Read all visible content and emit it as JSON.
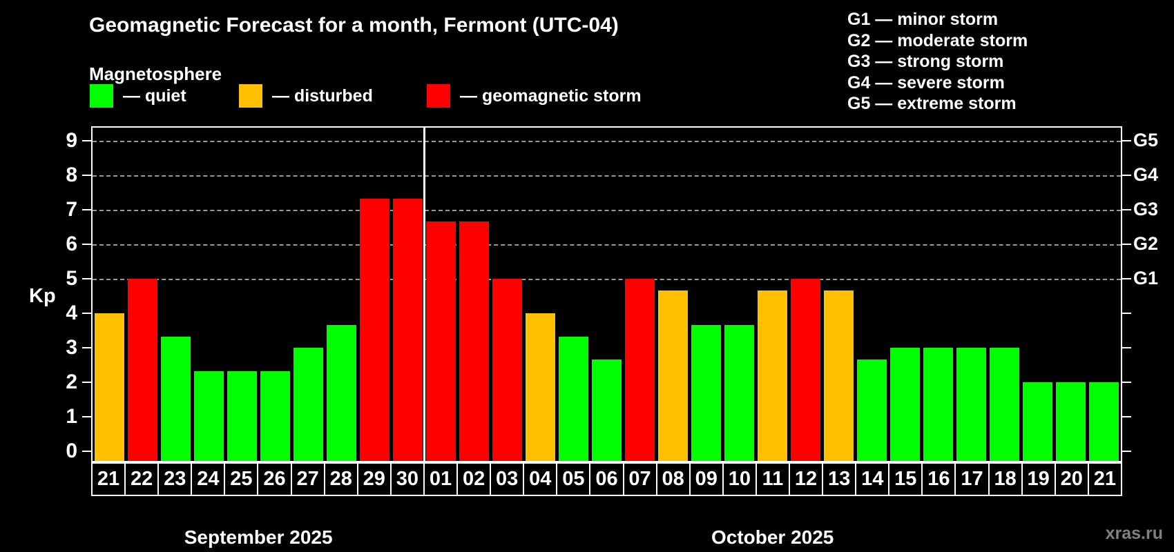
{
  "header": {
    "title": "Geomagnetic Forecast for a month, Fermont (UTC-04)"
  },
  "magnetosphere": {
    "label": "Magnetosphere",
    "legend": [
      {
        "key": "quiet",
        "label": "— quiet",
        "color": "#00ff00"
      },
      {
        "key": "disturbed",
        "label": "— disturbed",
        "color": "#ffc000"
      },
      {
        "key": "storm",
        "label": "— geomagnetic storm",
        "color": "#ff0000"
      }
    ]
  },
  "storm_scale_legend": {
    "lines": [
      "G1 — minor storm",
      "G2 — moderate storm",
      "G3 — strong storm",
      "G4 — severe storm",
      "G5 — extreme storm"
    ]
  },
  "watermark": "xras.ru",
  "colors": {
    "background": "#000000",
    "axis": "#ffffff",
    "grid": "#9a9a9a",
    "text": "#ffffff",
    "watermark": "#808080",
    "quiet": "#00ff00",
    "disturbed": "#ffc000",
    "storm": "#ff0000"
  },
  "chart_data": {
    "type": "bar",
    "ylabel": "Kp",
    "ylim": [
      0,
      9
    ],
    "yticks": [
      0,
      1,
      2,
      3,
      4,
      5,
      6,
      7,
      8,
      9
    ],
    "gridline_levels": [
      5,
      6,
      7,
      8,
      9
    ],
    "grid_style": "dashed",
    "legend_position": "top",
    "right_axis_labels": [
      {
        "kp": 5,
        "label": "G1"
      },
      {
        "kp": 6,
        "label": "G2"
      },
      {
        "kp": 7,
        "label": "G3"
      },
      {
        "kp": 8,
        "label": "G4"
      },
      {
        "kp": 9,
        "label": "G5"
      }
    ],
    "months": [
      {
        "label": "September 2025",
        "bars": [
          {
            "day": "21",
            "kp": 4.0,
            "status": "disturbed"
          },
          {
            "day": "22",
            "kp": 5.0,
            "status": "storm"
          },
          {
            "day": "23",
            "kp": 3.33,
            "status": "quiet"
          },
          {
            "day": "24",
            "kp": 2.33,
            "status": "quiet"
          },
          {
            "day": "25",
            "kp": 2.33,
            "status": "quiet"
          },
          {
            "day": "26",
            "kp": 2.33,
            "status": "quiet"
          },
          {
            "day": "27",
            "kp": 3.0,
            "status": "quiet"
          },
          {
            "day": "28",
            "kp": 3.67,
            "status": "quiet"
          },
          {
            "day": "29",
            "kp": 7.33,
            "status": "storm"
          },
          {
            "day": "30",
            "kp": 7.33,
            "status": "storm"
          }
        ]
      },
      {
        "label": "October 2025",
        "bars": [
          {
            "day": "01",
            "kp": 6.67,
            "status": "storm"
          },
          {
            "day": "02",
            "kp": 6.67,
            "status": "storm"
          },
          {
            "day": "03",
            "kp": 5.0,
            "status": "storm"
          },
          {
            "day": "04",
            "kp": 4.0,
            "status": "disturbed"
          },
          {
            "day": "05",
            "kp": 3.33,
            "status": "quiet"
          },
          {
            "day": "06",
            "kp": 2.67,
            "status": "quiet"
          },
          {
            "day": "07",
            "kp": 5.0,
            "status": "storm"
          },
          {
            "day": "08",
            "kp": 4.67,
            "status": "disturbed"
          },
          {
            "day": "09",
            "kp": 3.67,
            "status": "quiet"
          },
          {
            "day": "10",
            "kp": 3.67,
            "status": "quiet"
          },
          {
            "day": "11",
            "kp": 4.67,
            "status": "disturbed"
          },
          {
            "day": "12",
            "kp": 5.0,
            "status": "storm"
          },
          {
            "day": "13",
            "kp": 4.67,
            "status": "disturbed"
          },
          {
            "day": "14",
            "kp": 2.67,
            "status": "quiet"
          },
          {
            "day": "15",
            "kp": 3.0,
            "status": "quiet"
          },
          {
            "day": "16",
            "kp": 3.0,
            "status": "quiet"
          },
          {
            "day": "17",
            "kp": 3.0,
            "status": "quiet"
          },
          {
            "day": "18",
            "kp": 3.0,
            "status": "quiet"
          },
          {
            "day": "19",
            "kp": 2.0,
            "status": "quiet"
          },
          {
            "day": "20",
            "kp": 2.0,
            "status": "quiet"
          },
          {
            "day": "21",
            "kp": 2.0,
            "status": "quiet"
          }
        ]
      }
    ]
  }
}
